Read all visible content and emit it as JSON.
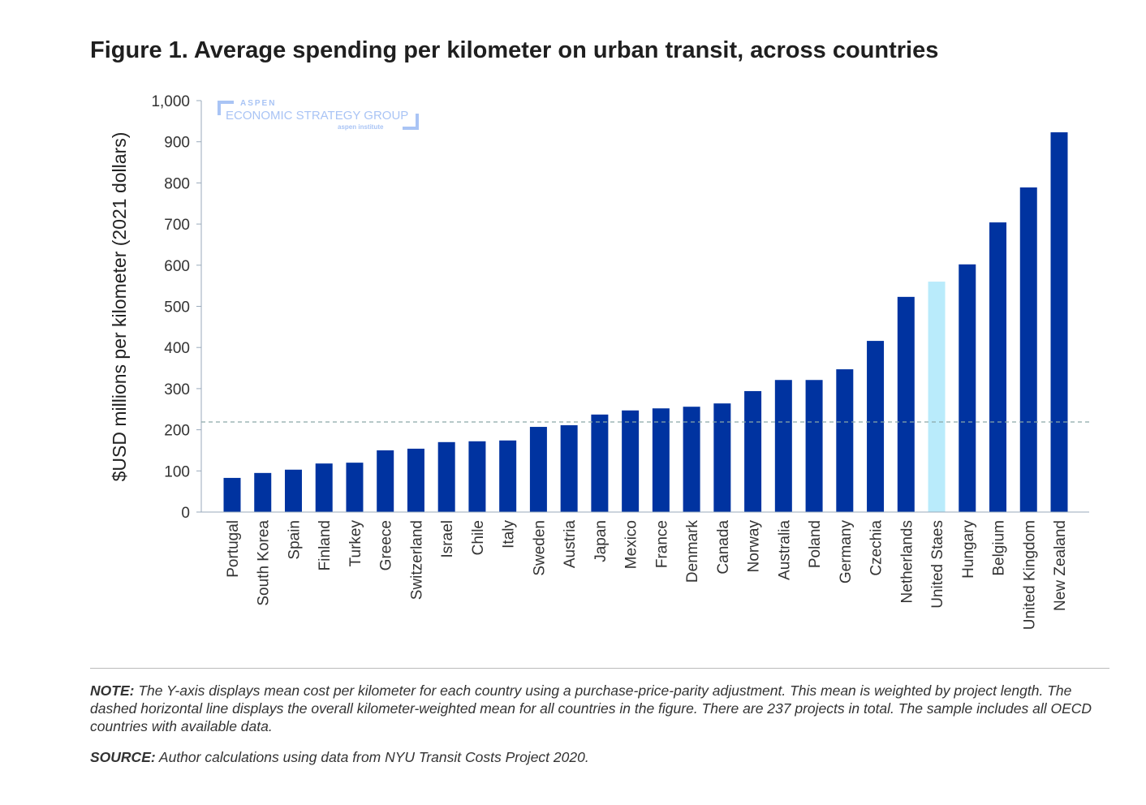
{
  "title": "Figure 1. Average spending per kilometer on urban transit, across countries",
  "watermark": {
    "top": "ASPEN",
    "main": "ECONOMIC STRATEGY GROUP",
    "sub": "aspen institute"
  },
  "note_label": "NOTE:",
  "note_text": " The Y-axis displays mean cost per kilometer for each country using a purchase-price-parity adjustment. This mean is weighted by project length. The dashed horizontal line displays the overall kilometer-weighted mean for all countries in the figure. There are 237 projects in total. The sample includes all OECD countries with available data.",
  "source_label": "SOURCE:",
  "source_text": " Author calculations using data from NYU Transit Costs Project 2020.",
  "colors": {
    "bar": "#0033a0",
    "highlight": "#b9ebfb",
    "mean_line": "#8aa8a8"
  },
  "chart_data": {
    "type": "bar",
    "title": "Figure 1. Average spending per kilometer on urban transit, across countries",
    "xlabel": "",
    "ylabel": "$USD millions per kilometer (2021 dollars)",
    "ylim": [
      0,
      1000
    ],
    "yticks": [
      0,
      100,
      200,
      300,
      400,
      500,
      600,
      700,
      800,
      900,
      1000
    ],
    "ytick_labels": [
      "0",
      "100",
      "200",
      "300",
      "400",
      "500",
      "600",
      "700",
      "800",
      "900",
      "1,000"
    ],
    "categories": [
      "Portugal",
      "South Korea",
      "Spain",
      "Finland",
      "Turkey",
      "Greece",
      "Switzerland",
      "Israel",
      "Chile",
      "Italy",
      "Sweden",
      "Austria",
      "Japan",
      "Mexico",
      "France",
      "Denmark",
      "Canada",
      "Norway",
      "Australia",
      "Poland",
      "Germany",
      "Czechia",
      "Netherlands",
      "United Staes",
      "Hungary",
      "Belgium",
      "United Kingdom",
      "New Zealand"
    ],
    "values": [
      83,
      95,
      103,
      118,
      120,
      150,
      154,
      170,
      172,
      174,
      207,
      211,
      237,
      247,
      252,
      256,
      264,
      294,
      321,
      321,
      347,
      416,
      523,
      560,
      602,
      704,
      789,
      923
    ],
    "highlight": "United Staes",
    "mean_line": 219,
    "grid": false
  }
}
